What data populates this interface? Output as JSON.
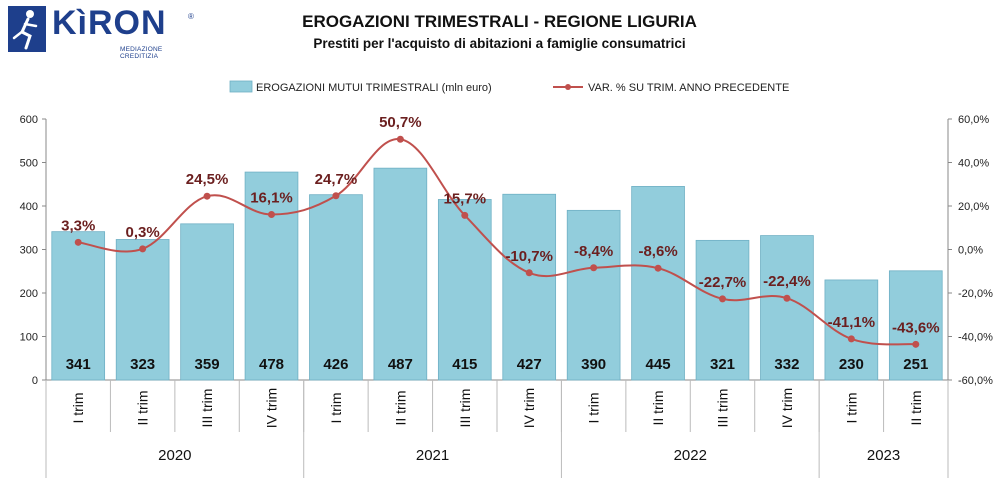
{
  "logo": {
    "name": "KìRON",
    "tagline": "MEDIAZIONE CREDITIZIA",
    "reg": "®"
  },
  "title": "EROGAZIONI TRIMESTRALI - REGIONE LIGURIA",
  "subtitle": "Prestiti per l'acquisto di abitazioni a famiglie consumatrici",
  "colors": {
    "bar": "#92cddc",
    "bar_border": "#6fb0c4",
    "line": "#c0504d",
    "line_label": "#6b1f1f"
  },
  "chart_data": {
    "type": "bar",
    "categories": [
      "I trim",
      "II trim",
      "III trim",
      "IV trim",
      "I trim",
      "II trim",
      "III trim",
      "IV trim",
      "I trim",
      "II trim",
      "III trim",
      "IV trim",
      "I trim",
      "II trim"
    ],
    "groups": [
      {
        "label": "2020",
        "count": 4
      },
      {
        "label": "2021",
        "count": 4
      },
      {
        "label": "2022",
        "count": 4
      },
      {
        "label": "2023",
        "count": 2
      }
    ],
    "series": [
      {
        "name": "EROGAZIONI MUTUI TRIMESTRALI (mln euro)",
        "type": "bar",
        "axis": "left",
        "values": [
          341,
          323,
          359,
          478,
          426,
          487,
          415,
          427,
          390,
          445,
          321,
          332,
          230,
          251
        ],
        "labels": [
          "341",
          "323",
          "359",
          "478",
          "426",
          "487",
          "415",
          "427",
          "390",
          "445",
          "321",
          "332",
          "230",
          "251"
        ]
      },
      {
        "name": "VAR. % SU TRIM. ANNO PRECEDENTE",
        "type": "line",
        "axis": "right",
        "values": [
          3.3,
          0.3,
          24.5,
          16.1,
          24.7,
          50.7,
          15.7,
          -10.7,
          -8.4,
          -8.6,
          -22.7,
          -22.4,
          -41.1,
          -43.6
        ],
        "labels": [
          "3,3%",
          "0,3%",
          "24,5%",
          "16,1%",
          "24,7%",
          "50,7%",
          "15,7%",
          "-10,7%",
          "-8,4%",
          "-8,6%",
          "-22,7%",
          "-22,4%",
          "-41,1%",
          "-43,6%"
        ]
      }
    ],
    "y_left": {
      "min": 0,
      "max": 600,
      "ticks": [
        "0",
        "100",
        "200",
        "300",
        "400",
        "500",
        "600"
      ]
    },
    "y_right": {
      "min": -60,
      "max": 60,
      "ticks": [
        "-60,0%",
        "-40,0%",
        "-20,0%",
        "0,0%",
        "20,0%",
        "40,0%",
        "60,0%"
      ]
    },
    "legend_position": "top",
    "grid": false
  }
}
